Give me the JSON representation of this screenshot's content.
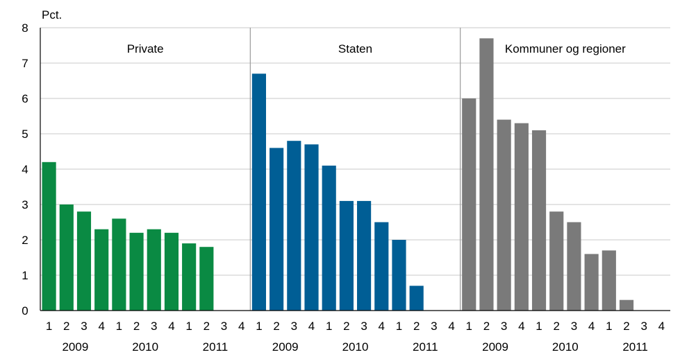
{
  "chart_data": {
    "type": "bar",
    "ylabel": "Pct.",
    "ylim": [
      0,
      8
    ],
    "yticks": [
      "0",
      "1",
      "2",
      "3",
      "4",
      "5",
      "6",
      "7",
      "8"
    ],
    "grid": true,
    "legend": "none",
    "quarter_labels": [
      "1",
      "2",
      "3",
      "4",
      "1",
      "2",
      "3",
      "4",
      "1",
      "2",
      "3",
      "4"
    ],
    "year_labels": [
      "2009",
      "2010",
      "2011"
    ],
    "panels": [
      {
        "name": "Private",
        "color": "#0a8a43",
        "values": [
          4.2,
          3.0,
          2.8,
          2.3,
          2.6,
          2.2,
          2.3,
          2.2,
          1.9,
          1.8,
          null,
          null
        ]
      },
      {
        "name": "Staten",
        "color": "#005e95",
        "values": [
          6.7,
          4.6,
          4.8,
          4.7,
          4.1,
          3.1,
          3.1,
          2.5,
          2.0,
          0.7,
          null,
          null
        ]
      },
      {
        "name": "Kommuner og regioner",
        "color": "#7a7a7a",
        "values": [
          6.0,
          7.7,
          5.4,
          5.3,
          5.1,
          2.8,
          2.5,
          1.6,
          1.7,
          0.3,
          null,
          null
        ]
      }
    ]
  }
}
